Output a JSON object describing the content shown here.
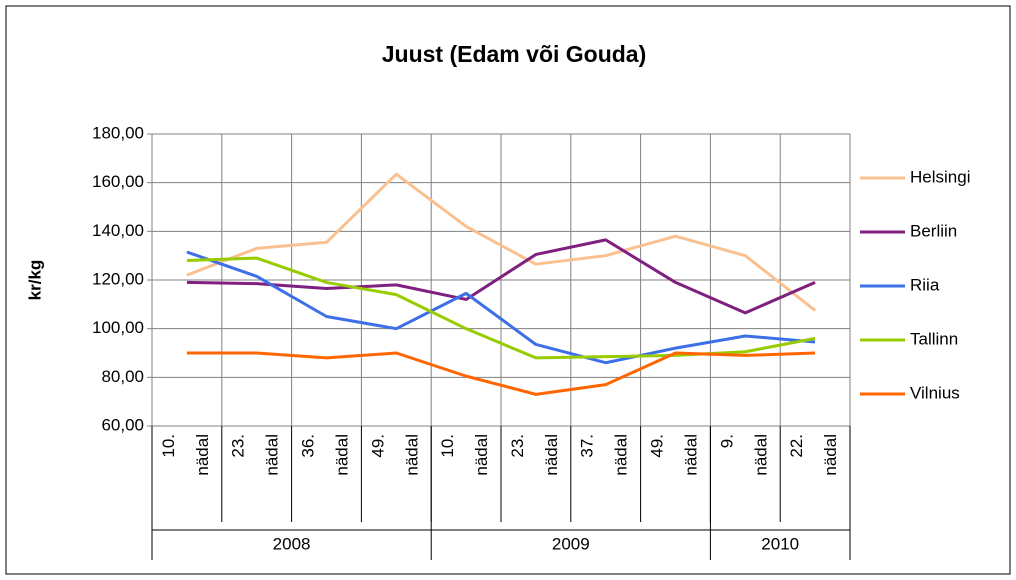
{
  "chart_data": {
    "type": "line",
    "title": "Juust (Edam või Gouda)",
    "ylabel": "kr/kg",
    "categories": [
      "10. nädal",
      "23. nädal",
      "36. nädal",
      "49. nädal",
      "10. nädal",
      "23. nädal",
      "37. nädal",
      "49. nädal",
      "9. nädal",
      "22. nädal"
    ],
    "category_groups": [
      {
        "name": "2008",
        "size": 4
      },
      {
        "name": "2009",
        "size": 4
      },
      {
        "name": "2010",
        "size": 2
      }
    ],
    "series": [
      {
        "name": "Helsingi",
        "color": "#fac090",
        "values": [
          122,
          133,
          135.5,
          163.5,
          142,
          126.5,
          130,
          138,
          130,
          107.5
        ]
      },
      {
        "name": "Berliin",
        "color": "#7f1f7f",
        "values": [
          119,
          118.5,
          116.5,
          118,
          112,
          130.5,
          136.5,
          119,
          106.5,
          119
        ]
      },
      {
        "name": "Riia",
        "color": "#3d6fe8",
        "values": [
          131.5,
          121.5,
          105,
          100,
          114.5,
          93.5,
          86,
          92,
          97,
          94.5
        ]
      },
      {
        "name": "Tallinn",
        "color": "#99cc00",
        "values": [
          128,
          129,
          119,
          114,
          100,
          88,
          88.5,
          89,
          90.5,
          96
        ]
      },
      {
        "name": "Vilnius",
        "color": "#ff6600",
        "values": [
          90,
          90,
          88,
          90,
          80.5,
          73,
          77,
          90,
          89,
          90
        ]
      }
    ],
    "ylim": [
      60,
      180
    ],
    "yticks": [
      {
        "value": 60,
        "label": "60,00"
      },
      {
        "value": 80,
        "label": "80,00"
      },
      {
        "value": 100,
        "label": "100,00"
      },
      {
        "value": 120,
        "label": "120,00"
      },
      {
        "value": 140,
        "label": "140,00"
      },
      {
        "value": 160,
        "label": "160,00"
      },
      {
        "value": 180,
        "label": "180,00"
      }
    ],
    "grid": true,
    "legend": "right"
  }
}
